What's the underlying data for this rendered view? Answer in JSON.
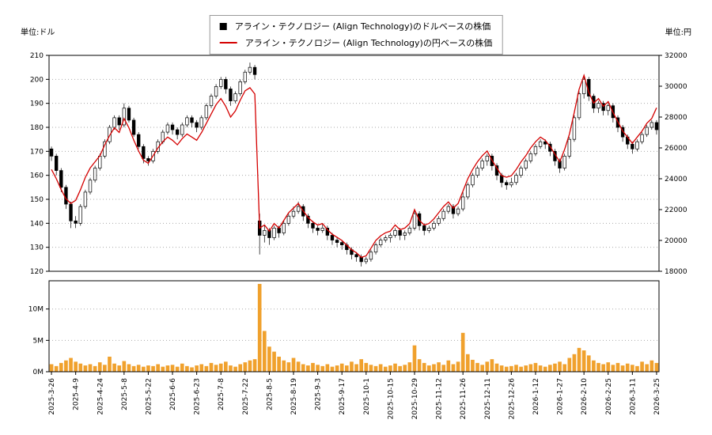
{
  "legend": {
    "series1": "アライン・テクノロジー (Align Technology)のドルベースの株価",
    "series2": "アライン・テクノロジー (Align Technology)の円ベースの株価"
  },
  "axes": {
    "left_unit": "単位:ドル",
    "right_unit": "単位:円"
  },
  "chart_data": {
    "type": "candlestick",
    "title": "",
    "grid": true,
    "legend_position": "top-center",
    "x_labels": [
      "2025-3-26",
      "2025-4-9",
      "2025-4-24",
      "2025-5-8",
      "2025-5-22",
      "2025-6-6",
      "2025-6-23",
      "2025-7-8",
      "2025-7-22",
      "2025-8-5",
      "2025-8-19",
      "2025-9-3",
      "2025-9-17",
      "2025-10-1",
      "2025-10-15",
      "2025-10-29",
      "2025-11-12",
      "2025-11-26",
      "2025-12-11",
      "2025-12-26",
      "2026-1-12",
      "2026-1-27",
      "2026-2-10",
      "2026-2-25",
      "2026-3-11",
      "2026-3-25"
    ],
    "x_label_every": 5,
    "left_axis": {
      "min": 120,
      "max": 210,
      "step": 10,
      "unit": "ドル"
    },
    "right_axis": {
      "min": 18000,
      "max": 32000,
      "step": 2000,
      "unit": "円"
    },
    "volume_axis": {
      "min": 0,
      "max": 14.5,
      "ticks": [
        0,
        5,
        10
      ],
      "unit": "M"
    },
    "series": [
      {
        "name": "アライン・テクノロジー (Align Technology)のドルベースの株価",
        "type": "candlestick",
        "axis": "left",
        "color": "#000000",
        "ohlc": [
          [
            171,
            172,
            166,
            168
          ],
          [
            168,
            169,
            160,
            162
          ],
          [
            162,
            163,
            153,
            155
          ],
          [
            155,
            156,
            146,
            148
          ],
          [
            148,
            149,
            138,
            141
          ],
          [
            141,
            143,
            138,
            140
          ],
          [
            140,
            148,
            139,
            147
          ],
          [
            147,
            154,
            146,
            153
          ],
          [
            153,
            159,
            152,
            158
          ],
          [
            158,
            164,
            157,
            163
          ],
          [
            163,
            169,
            162,
            168
          ],
          [
            168,
            175,
            167,
            174
          ],
          [
            174,
            181,
            173,
            180
          ],
          [
            180,
            185,
            179,
            184
          ],
          [
            184,
            185,
            179,
            181
          ],
          [
            181,
            190,
            180,
            188
          ],
          [
            188,
            189,
            182,
            183
          ],
          [
            183,
            184,
            176,
            177
          ],
          [
            177,
            178,
            171,
            172
          ],
          [
            172,
            173,
            165,
            167
          ],
          [
            167,
            168,
            164,
            166
          ],
          [
            166,
            171,
            165,
            170
          ],
          [
            170,
            175,
            169,
            174
          ],
          [
            174,
            179,
            173,
            178
          ],
          [
            178,
            182,
            177,
            181
          ],
          [
            181,
            182,
            177,
            179
          ],
          [
            179,
            180,
            175,
            177
          ],
          [
            177,
            182,
            176,
            181
          ],
          [
            181,
            185,
            180,
            184
          ],
          [
            184,
            185,
            180,
            182
          ],
          [
            182,
            183,
            178,
            180
          ],
          [
            180,
            185,
            179,
            184
          ],
          [
            184,
            190,
            183,
            189
          ],
          [
            189,
            194,
            188,
            193
          ],
          [
            193,
            198,
            192,
            197
          ],
          [
            197,
            201,
            196,
            200
          ],
          [
            200,
            201,
            194,
            196
          ],
          [
            196,
            197,
            189,
            191
          ],
          [
            191,
            195,
            190,
            194
          ],
          [
            194,
            200,
            193,
            199
          ],
          [
            199,
            204,
            198,
            203
          ],
          [
            203,
            207,
            202,
            205
          ],
          [
            205,
            206,
            200,
            202
          ],
          [
            141,
            144,
            127,
            135
          ],
          [
            135,
            139,
            132,
            137
          ],
          [
            137,
            138,
            131,
            134
          ],
          [
            134,
            139,
            133,
            138
          ],
          [
            138,
            139,
            134,
            136
          ],
          [
            136,
            141,
            135,
            140
          ],
          [
            140,
            144,
            139,
            143
          ],
          [
            143,
            147,
            142,
            145
          ],
          [
            145,
            149,
            144,
            147
          ],
          [
            147,
            148,
            141,
            143
          ],
          [
            143,
            144,
            138,
            140
          ],
          [
            140,
            141,
            136,
            138
          ],
          [
            138,
            139,
            135,
            137
          ],
          [
            137,
            140,
            136,
            138
          ],
          [
            138,
            139,
            133,
            135
          ],
          [
            135,
            136,
            131,
            133
          ],
          [
            133,
            134,
            130,
            132
          ],
          [
            132,
            133,
            129,
            131
          ],
          [
            131,
            132,
            127,
            129
          ],
          [
            129,
            130,
            125,
            127
          ],
          [
            127,
            128,
            124,
            126
          ],
          [
            126,
            127,
            122,
            124
          ],
          [
            124,
            126,
            123,
            125
          ],
          [
            125,
            129,
            124,
            128
          ],
          [
            128,
            132,
            127,
            131
          ],
          [
            131,
            134,
            130,
            133
          ],
          [
            133,
            135,
            132,
            134
          ],
          [
            134,
            136,
            132,
            135
          ],
          [
            135,
            138,
            134,
            137
          ],
          [
            137,
            138,
            133,
            135
          ],
          [
            135,
            137,
            133,
            136
          ],
          [
            136,
            139,
            135,
            138
          ],
          [
            138,
            146,
            137,
            144
          ],
          [
            144,
            145,
            137,
            139
          ],
          [
            139,
            140,
            135,
            137
          ],
          [
            137,
            139,
            136,
            138
          ],
          [
            138,
            141,
            137,
            140
          ],
          [
            140,
            143,
            139,
            142
          ],
          [
            142,
            146,
            141,
            145
          ],
          [
            145,
            148,
            144,
            147
          ],
          [
            147,
            148,
            142,
            144
          ],
          [
            144,
            147,
            143,
            146
          ],
          [
            146,
            153,
            145,
            151
          ],
          [
            151,
            157,
            150,
            156
          ],
          [
            156,
            161,
            155,
            160
          ],
          [
            160,
            164,
            159,
            163
          ],
          [
            163,
            167,
            162,
            166
          ],
          [
            166,
            169,
            164,
            168
          ],
          [
            168,
            169,
            162,
            164
          ],
          [
            164,
            165,
            158,
            160
          ],
          [
            160,
            161,
            155,
            157
          ],
          [
            157,
            158,
            154,
            156
          ],
          [
            156,
            159,
            155,
            157
          ],
          [
            157,
            161,
            156,
            160
          ],
          [
            160,
            164,
            159,
            163
          ],
          [
            163,
            167,
            162,
            166
          ],
          [
            166,
            170,
            165,
            169
          ],
          [
            169,
            173,
            168,
            172
          ],
          [
            172,
            175,
            171,
            174
          ],
          [
            174,
            175,
            171,
            173
          ],
          [
            173,
            174,
            168,
            170
          ],
          [
            170,
            171,
            164,
            166
          ],
          [
            166,
            167,
            161,
            163
          ],
          [
            163,
            169,
            162,
            168
          ],
          [
            168,
            176,
            167,
            175
          ],
          [
            175,
            185,
            174,
            184
          ],
          [
            184,
            195,
            183,
            194
          ],
          [
            194,
            202,
            192,
            200
          ],
          [
            200,
            201,
            191,
            193
          ],
          [
            193,
            194,
            186,
            188
          ],
          [
            188,
            191,
            186,
            190
          ],
          [
            190,
            191,
            185,
            187
          ],
          [
            187,
            190,
            185,
            189
          ],
          [
            189,
            190,
            182,
            184
          ],
          [
            184,
            185,
            178,
            180
          ],
          [
            180,
            181,
            174,
            176
          ],
          [
            176,
            177,
            171,
            173
          ],
          [
            173,
            174,
            169,
            171
          ],
          [
            171,
            175,
            170,
            174
          ],
          [
            174,
            178,
            173,
            177
          ],
          [
            177,
            181,
            176,
            180
          ],
          [
            180,
            183,
            179,
            182
          ],
          [
            182,
            183,
            177,
            179
          ]
        ]
      },
      {
        "name": "アライン・テクノロジー (Align Technology)の円ベースの株価",
        "type": "line",
        "axis": "right",
        "color": "#d40000",
        "values": [
          24600,
          24000,
          23300,
          22700,
          22400,
          22600,
          23300,
          24100,
          24700,
          25100,
          25500,
          26200,
          26800,
          27300,
          27000,
          27900,
          27300,
          26500,
          25800,
          25200,
          25000,
          25500,
          26000,
          26400,
          26700,
          26500,
          26200,
          26600,
          26900,
          26700,
          26500,
          27000,
          27600,
          28200,
          28800,
          29200,
          28700,
          28000,
          28400,
          29100,
          29700,
          29900,
          29500,
          20800,
          21000,
          20600,
          21100,
          20800,
          21300,
          21800,
          22100,
          22400,
          21900,
          21500,
          21200,
          21000,
          21100,
          20700,
          20400,
          20200,
          20000,
          19700,
          19400,
          19200,
          18900,
          19000,
          19500,
          20000,
          20300,
          20500,
          20600,
          21000,
          20700,
          20800,
          21100,
          22000,
          21300,
          21000,
          21100,
          21400,
          21800,
          22200,
          22500,
          22100,
          22400,
          23200,
          24000,
          24600,
          25100,
          25500,
          25800,
          25200,
          24700,
          24200,
          24100,
          24200,
          24600,
          25100,
          25500,
          26000,
          26400,
          26700,
          26500,
          26100,
          25600,
          25100,
          25900,
          26900,
          28300,
          29800,
          30700,
          29600,
          28900,
          29200,
          28700,
          29000,
          28300,
          27700,
          27100,
          26700,
          26300,
          26700,
          27100,
          27600,
          27900,
          28600
        ]
      },
      {
        "name": "出来高",
        "type": "bar",
        "axis": "volume",
        "color": "#f0a12d",
        "values": [
          1.2,
          0.9,
          1.4,
          1.8,
          2.2,
          1.6,
          1.3,
          1.0,
          1.2,
          0.9,
          1.5,
          1.1,
          2.4,
          1.3,
          1.0,
          1.7,
          1.2,
          0.9,
          1.1,
          0.8,
          1.0,
          0.9,
          1.2,
          0.8,
          1.0,
          1.1,
          0.8,
          1.3,
          0.9,
          0.7,
          1.0,
          1.2,
          0.9,
          1.4,
          1.1,
          1.3,
          1.6,
          1.0,
          0.8,
          1.2,
          1.5,
          1.8,
          2.0,
          14.0,
          6.5,
          4.0,
          3.2,
          2.4,
          1.8,
          1.5,
          2.2,
          1.6,
          1.2,
          1.0,
          1.4,
          1.1,
          0.9,
          1.2,
          0.8,
          1.0,
          1.3,
          1.0,
          1.6,
          1.2,
          2.0,
          1.4,
          1.1,
          0.9,
          1.2,
          0.8,
          1.0,
          1.3,
          0.9,
          1.1,
          1.5,
          4.2,
          2.0,
          1.4,
          1.0,
          1.2,
          1.5,
          1.1,
          1.8,
          1.2,
          1.6,
          6.2,
          2.8,
          1.9,
          1.4,
          1.1,
          1.6,
          2.0,
          1.3,
          1.0,
          0.8,
          0.9,
          1.1,
          0.8,
          1.0,
          1.2,
          1.4,
          1.0,
          0.8,
          1.1,
          1.3,
          1.6,
          1.2,
          2.2,
          2.8,
          3.8,
          3.4,
          2.6,
          1.8,
          1.4,
          1.2,
          1.5,
          1.1,
          1.4,
          1.0,
          1.3,
          1.1,
          0.9,
          1.6,
          1.2,
          1.8,
          1.4
        ]
      }
    ]
  }
}
